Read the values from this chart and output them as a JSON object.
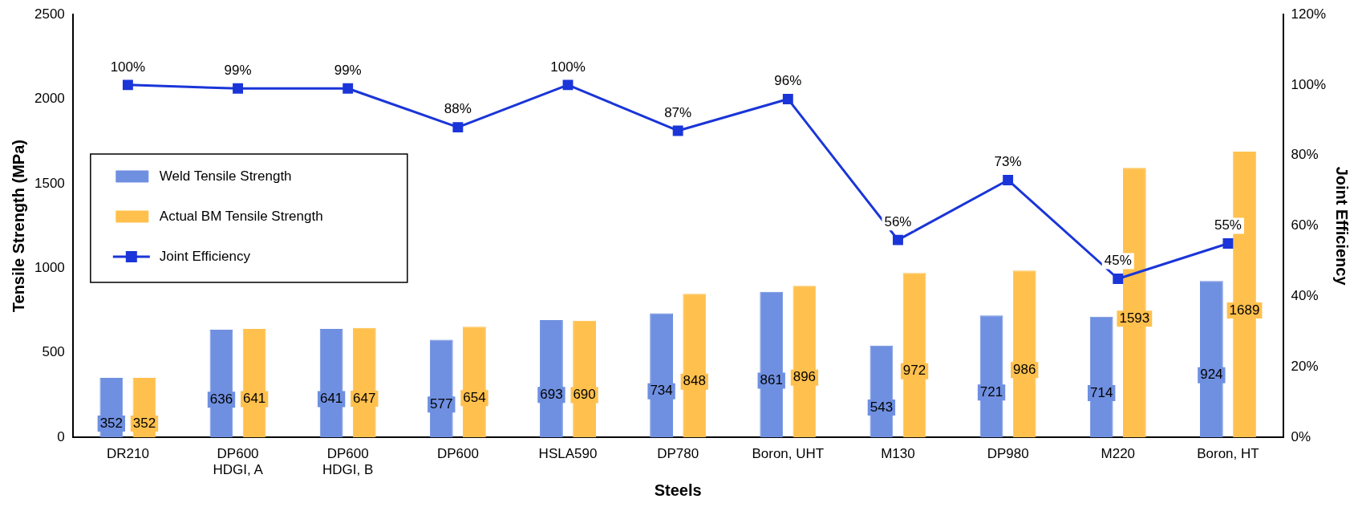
{
  "chart_data": {
    "type": "bar",
    "xlabel": "Steels",
    "ylabel": "Tensile Strength (MPa)",
    "y2label": "Joint Efficiency",
    "categories": [
      "DR210",
      "DP600\nHDGI, A",
      "DP600\nHDGI, B",
      "DP600",
      "HSLA590",
      "DP780",
      "Boron, UHT",
      "M130",
      "DP980",
      "M220",
      "Boron, HT"
    ],
    "series": [
      {
        "name": "Weld Tensile Strength",
        "color": "#6f8fe0",
        "values": [
          352,
          636,
          641,
          577,
          693,
          734,
          861,
          543,
          721,
          714,
          924
        ],
        "value_labels": [
          "352",
          "636",
          "641",
          "577",
          "693",
          "734",
          "861",
          "543",
          "721",
          "714",
          "924"
        ]
      },
      {
        "name": "Actual BM Tensile Strength",
        "color": "#ffc04d",
        "values": [
          352,
          641,
          647,
          654,
          690,
          848,
          896,
          972,
          986,
          1593,
          1689
        ],
        "value_labels": [
          "352",
          "641",
          "647",
          "654",
          "690",
          "848",
          "896",
          "972",
          "986",
          "1593",
          "1689"
        ]
      },
      {
        "name": "Joint Efficiency",
        "type": "line",
        "axis": "y2",
        "color": "#1a35d8",
        "marker": "square",
        "values": [
          100,
          99,
          99,
          88,
          100,
          87,
          96,
          56,
          73,
          45,
          55
        ],
        "value_labels": [
          "100%",
          "99%",
          "99%",
          "88%",
          "100%",
          "87%",
          "96%",
          "56%",
          "73%",
          "45%",
          "55%"
        ]
      }
    ],
    "ylim": [
      0,
      2500
    ],
    "yticks": [
      0,
      500,
      1000,
      1500,
      2000,
      2500
    ],
    "y2lim": [
      0,
      120
    ],
    "y2ticks": [
      {
        "value": 0,
        "label": "0%"
      },
      {
        "value": 20,
        "label": "20%"
      },
      {
        "value": 40,
        "label": "40%"
      },
      {
        "value": 60,
        "label": "60%"
      },
      {
        "value": 80,
        "label": "80%"
      },
      {
        "value": 100,
        "label": "100%"
      },
      {
        "value": 120,
        "label": "120%"
      }
    ],
    "grid": false,
    "legend": "left"
  }
}
